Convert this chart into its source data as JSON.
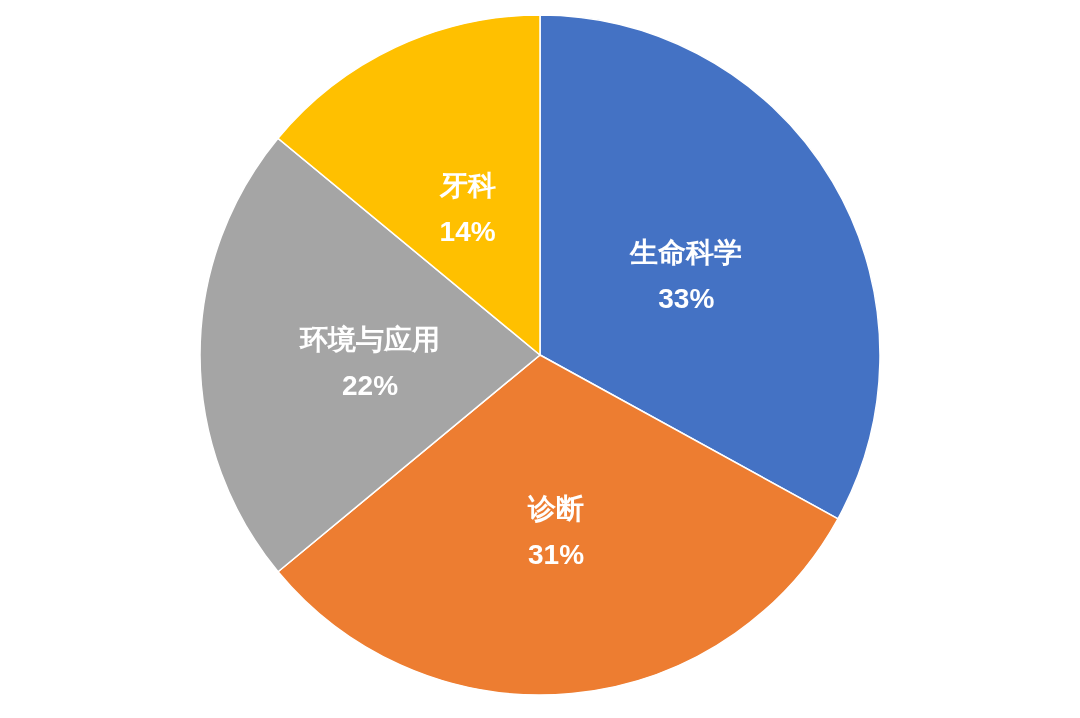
{
  "chart_data": {
    "type": "pie",
    "categories": [
      "生命科学",
      "诊断",
      "环境与应用",
      "牙科"
    ],
    "values": [
      33,
      31,
      22,
      14
    ],
    "colors": [
      "#4472c4",
      "#ed7d31",
      "#a5a5a5",
      "#ffc000"
    ],
    "value_labels": [
      "33%",
      "31%",
      "22%",
      "14%"
    ]
  }
}
